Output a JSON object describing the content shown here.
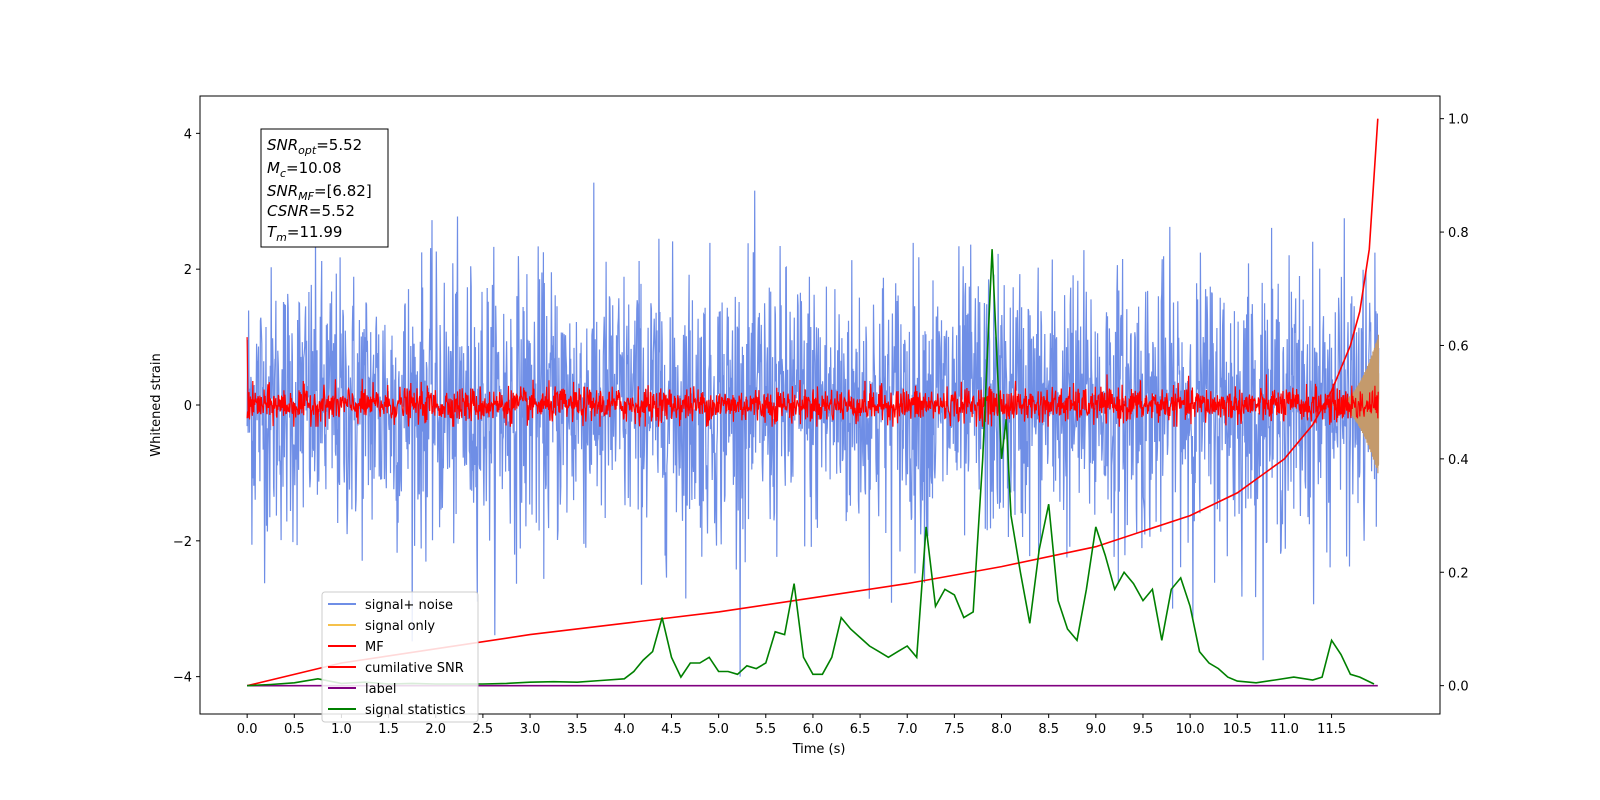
{
  "chart_data": {
    "type": "line",
    "xlabel": "Time (s)",
    "ylabel": "Whitened strain",
    "xlim": [
      -0.5,
      12.65
    ],
    "ylim": [
      -4.55,
      4.55
    ],
    "y2lim": [
      -0.05,
      1.04
    ],
    "x_ticks": [
      "0.0",
      "0.5",
      "1.0",
      "1.5",
      "2.0",
      "2.5",
      "3.0",
      "3.5",
      "4.0",
      "4.5",
      "5.0",
      "5.5",
      "6.0",
      "6.5",
      "7.0",
      "7.5",
      "8.0",
      "8.5",
      "9.0",
      "9.5",
      "10.0",
      "10.5",
      "11.0",
      "11.5"
    ],
    "y_ticks": [
      "4",
      "2",
      "0",
      "−2",
      "−4"
    ],
    "y2_ticks": [
      "1.0",
      "0.8",
      "0.6",
      "0.4",
      "0.2",
      "0.0"
    ],
    "info_box": {
      "snr_opt": "5.52",
      "mc": "10.08",
      "snr_mf": "[6.82]",
      "csnr": "5.52",
      "tm": "11.99"
    },
    "legend_position": "lower-left",
    "legend": [
      "signal+ noise",
      "signal only",
      "MF",
      "cumilative SNR",
      "label",
      "signal statistics"
    ],
    "colors": {
      "signal_noise": "#6f8ee6",
      "signal_only": "#f5c14b",
      "signal_only_overlap": "#c49a6c",
      "mf": "#ff0000",
      "cumulative_snr": "#ff0000",
      "label": "#800080",
      "signal_statistics": "#008000"
    },
    "series": [
      {
        "name": "signal+ noise",
        "axis": "left",
        "t_range": [
          0,
          12.0
        ],
        "approx_std": 1.0,
        "approx_max": 4.1,
        "approx_min": -4.0
      },
      {
        "name": "signal only",
        "axis": "left",
        "t_range": [
          11.5,
          12.0
        ],
        "approx_peak_amplitude": 1.05
      },
      {
        "name": "MF",
        "axis": "left",
        "t_range": [
          0,
          12.0
        ],
        "approx_std": 0.13,
        "approx_max": 1.0
      },
      {
        "name": "cumilative SNR",
        "axis": "right",
        "x": [
          0,
          1,
          2,
          3,
          4,
          5,
          6,
          7,
          8,
          9,
          10,
          10.5,
          11,
          11.3,
          11.5,
          11.7,
          11.8,
          11.9,
          11.99
        ],
        "y": [
          0.0,
          0.04,
          0.065,
          0.09,
          0.11,
          0.13,
          0.155,
          0.18,
          0.21,
          0.245,
          0.3,
          0.34,
          0.4,
          0.46,
          0.52,
          0.6,
          0.66,
          0.77,
          1.0
        ]
      },
      {
        "name": "label",
        "axis": "right",
        "x": [
          0,
          11.99
        ],
        "y": [
          0.0,
          0.0
        ]
      },
      {
        "name": "signal statistics",
        "axis": "right",
        "x": [
          0.0,
          0.25,
          0.5,
          0.75,
          1.0,
          1.25,
          1.5,
          1.75,
          2.0,
          2.25,
          2.5,
          2.75,
          3.0,
          3.25,
          3.5,
          3.75,
          4.0,
          4.1,
          4.2,
          4.3,
          4.4,
          4.5,
          4.6,
          4.7,
          4.8,
          4.9,
          5.0,
          5.1,
          5.2,
          5.3,
          5.4,
          5.5,
          5.6,
          5.7,
          5.8,
          5.9,
          6.0,
          6.1,
          6.2,
          6.3,
          6.4,
          6.5,
          6.6,
          6.7,
          6.8,
          6.9,
          7.0,
          7.1,
          7.2,
          7.3,
          7.4,
          7.5,
          7.6,
          7.7,
          7.8,
          7.9,
          8.0,
          8.05,
          8.1,
          8.2,
          8.3,
          8.4,
          8.5,
          8.6,
          8.7,
          8.8,
          8.9,
          9.0,
          9.1,
          9.2,
          9.3,
          9.4,
          9.5,
          9.6,
          9.7,
          9.8,
          9.9,
          10.0,
          10.1,
          10.2,
          10.3,
          10.4,
          10.5,
          10.7,
          10.9,
          11.1,
          11.3,
          11.4,
          11.5,
          11.6,
          11.7,
          11.8,
          11.95
        ],
        "y": [
          0.0,
          0.002,
          0.005,
          0.012,
          0.004,
          0.006,
          0.003,
          0.004,
          0.003,
          0.003,
          0.003,
          0.004,
          0.006,
          0.007,
          0.006,
          0.009,
          0.012,
          0.025,
          0.045,
          0.06,
          0.12,
          0.05,
          0.015,
          0.04,
          0.04,
          0.05,
          0.025,
          0.025,
          0.02,
          0.035,
          0.03,
          0.04,
          0.095,
          0.09,
          0.18,
          0.05,
          0.02,
          0.02,
          0.05,
          0.12,
          0.1,
          0.085,
          0.07,
          0.06,
          0.05,
          0.06,
          0.07,
          0.05,
          0.28,
          0.14,
          0.17,
          0.16,
          0.12,
          0.13,
          0.4,
          0.77,
          0.4,
          0.47,
          0.3,
          0.2,
          0.11,
          0.24,
          0.32,
          0.15,
          0.1,
          0.08,
          0.17,
          0.28,
          0.23,
          0.17,
          0.2,
          0.18,
          0.15,
          0.17,
          0.08,
          0.17,
          0.19,
          0.14,
          0.06,
          0.04,
          0.03,
          0.015,
          0.008,
          0.005,
          0.01,
          0.015,
          0.01,
          0.015,
          0.08,
          0.055,
          0.02,
          0.015,
          0.003
        ]
      }
    ]
  }
}
